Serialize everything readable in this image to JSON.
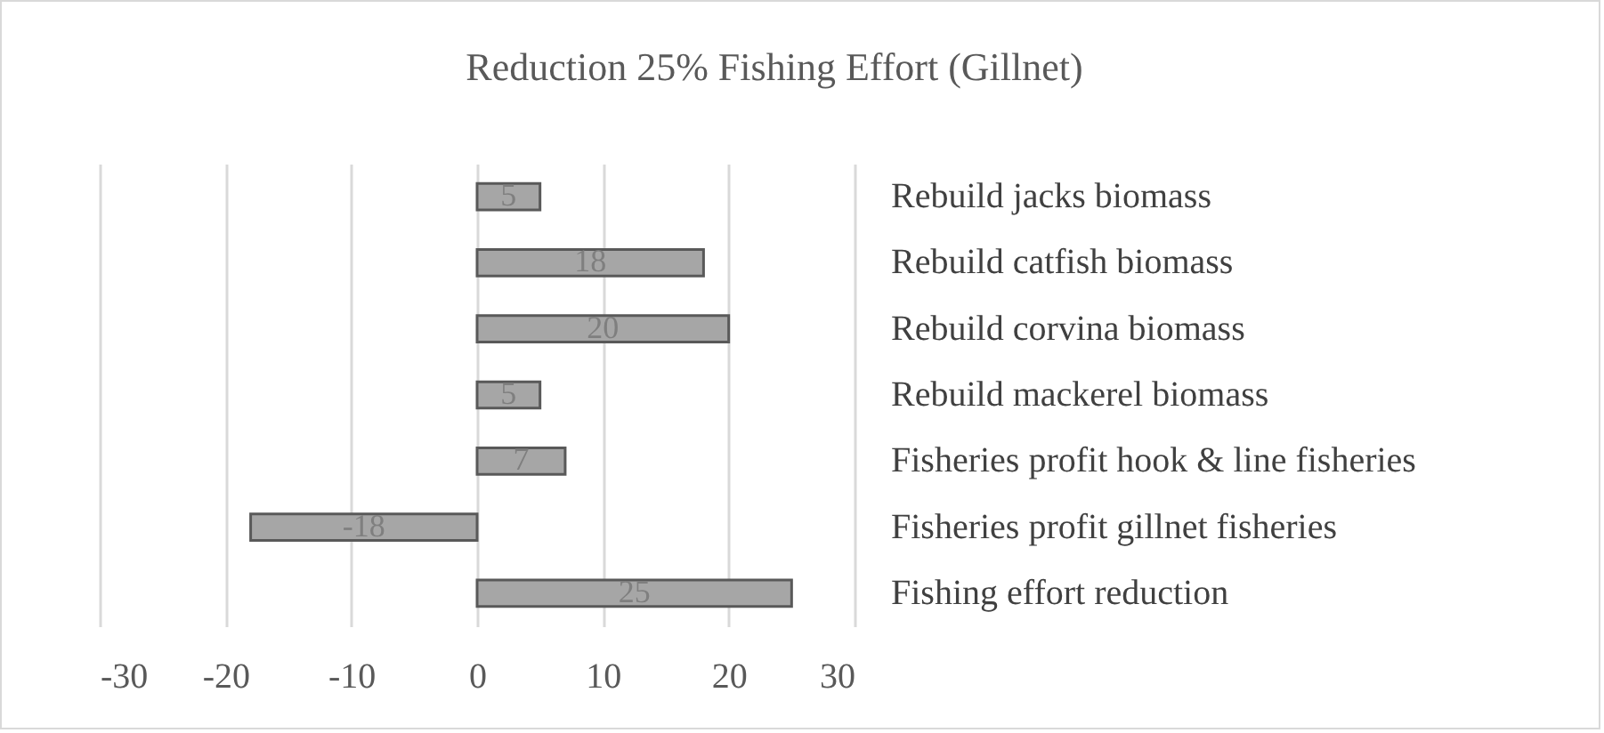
{
  "chart_data": {
    "type": "bar",
    "title": "Reduction 25% Fishing Effort (Gillnet)",
    "orientation": "horizontal",
    "categories": [
      "Rebuild jacks biomass",
      "Rebuild catfish biomass",
      "Rebuild corvina biomass",
      "Rebuild mackerel biomass",
      "Fisheries profit hook & line fisheries",
      "Fisheries profit gillnet fisheries",
      "Fishing effort reduction"
    ],
    "values": [
      5,
      18,
      20,
      5,
      7,
      -18,
      25
    ],
    "color": "#a6a6a6",
    "xlim": [
      -30,
      30
    ],
    "xticks": [
      -30,
      -20,
      -10,
      0,
      10,
      20,
      30
    ],
    "grid": "x",
    "data_labels": true
  }
}
